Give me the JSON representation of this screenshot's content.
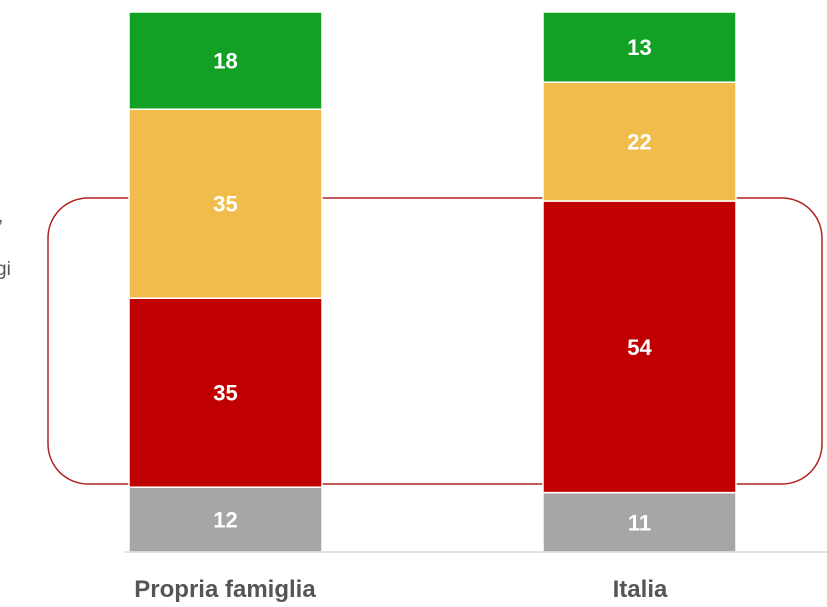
{
  "chart_data": {
    "type": "bar",
    "stacked": true,
    "categories": [
      "Propria famiglia",
      "Italia"
    ],
    "series": [
      {
        "values": [
          12,
          11
        ],
        "color": "#a6a6a6"
      },
      {
        "values": [
          35,
          54
        ],
        "color": "#c00000"
      },
      {
        "values": [
          35,
          22
        ],
        "color": "#f0bc4c"
      },
      {
        "values": [
          18,
          13
        ],
        "color": "#12a125"
      }
    ],
    "grid": false,
    "legend": "none",
    "highlight": {
      "series_index": 1,
      "border_color": "#b22222"
    }
  },
  "side_text": [
    ",",
    "gi"
  ]
}
